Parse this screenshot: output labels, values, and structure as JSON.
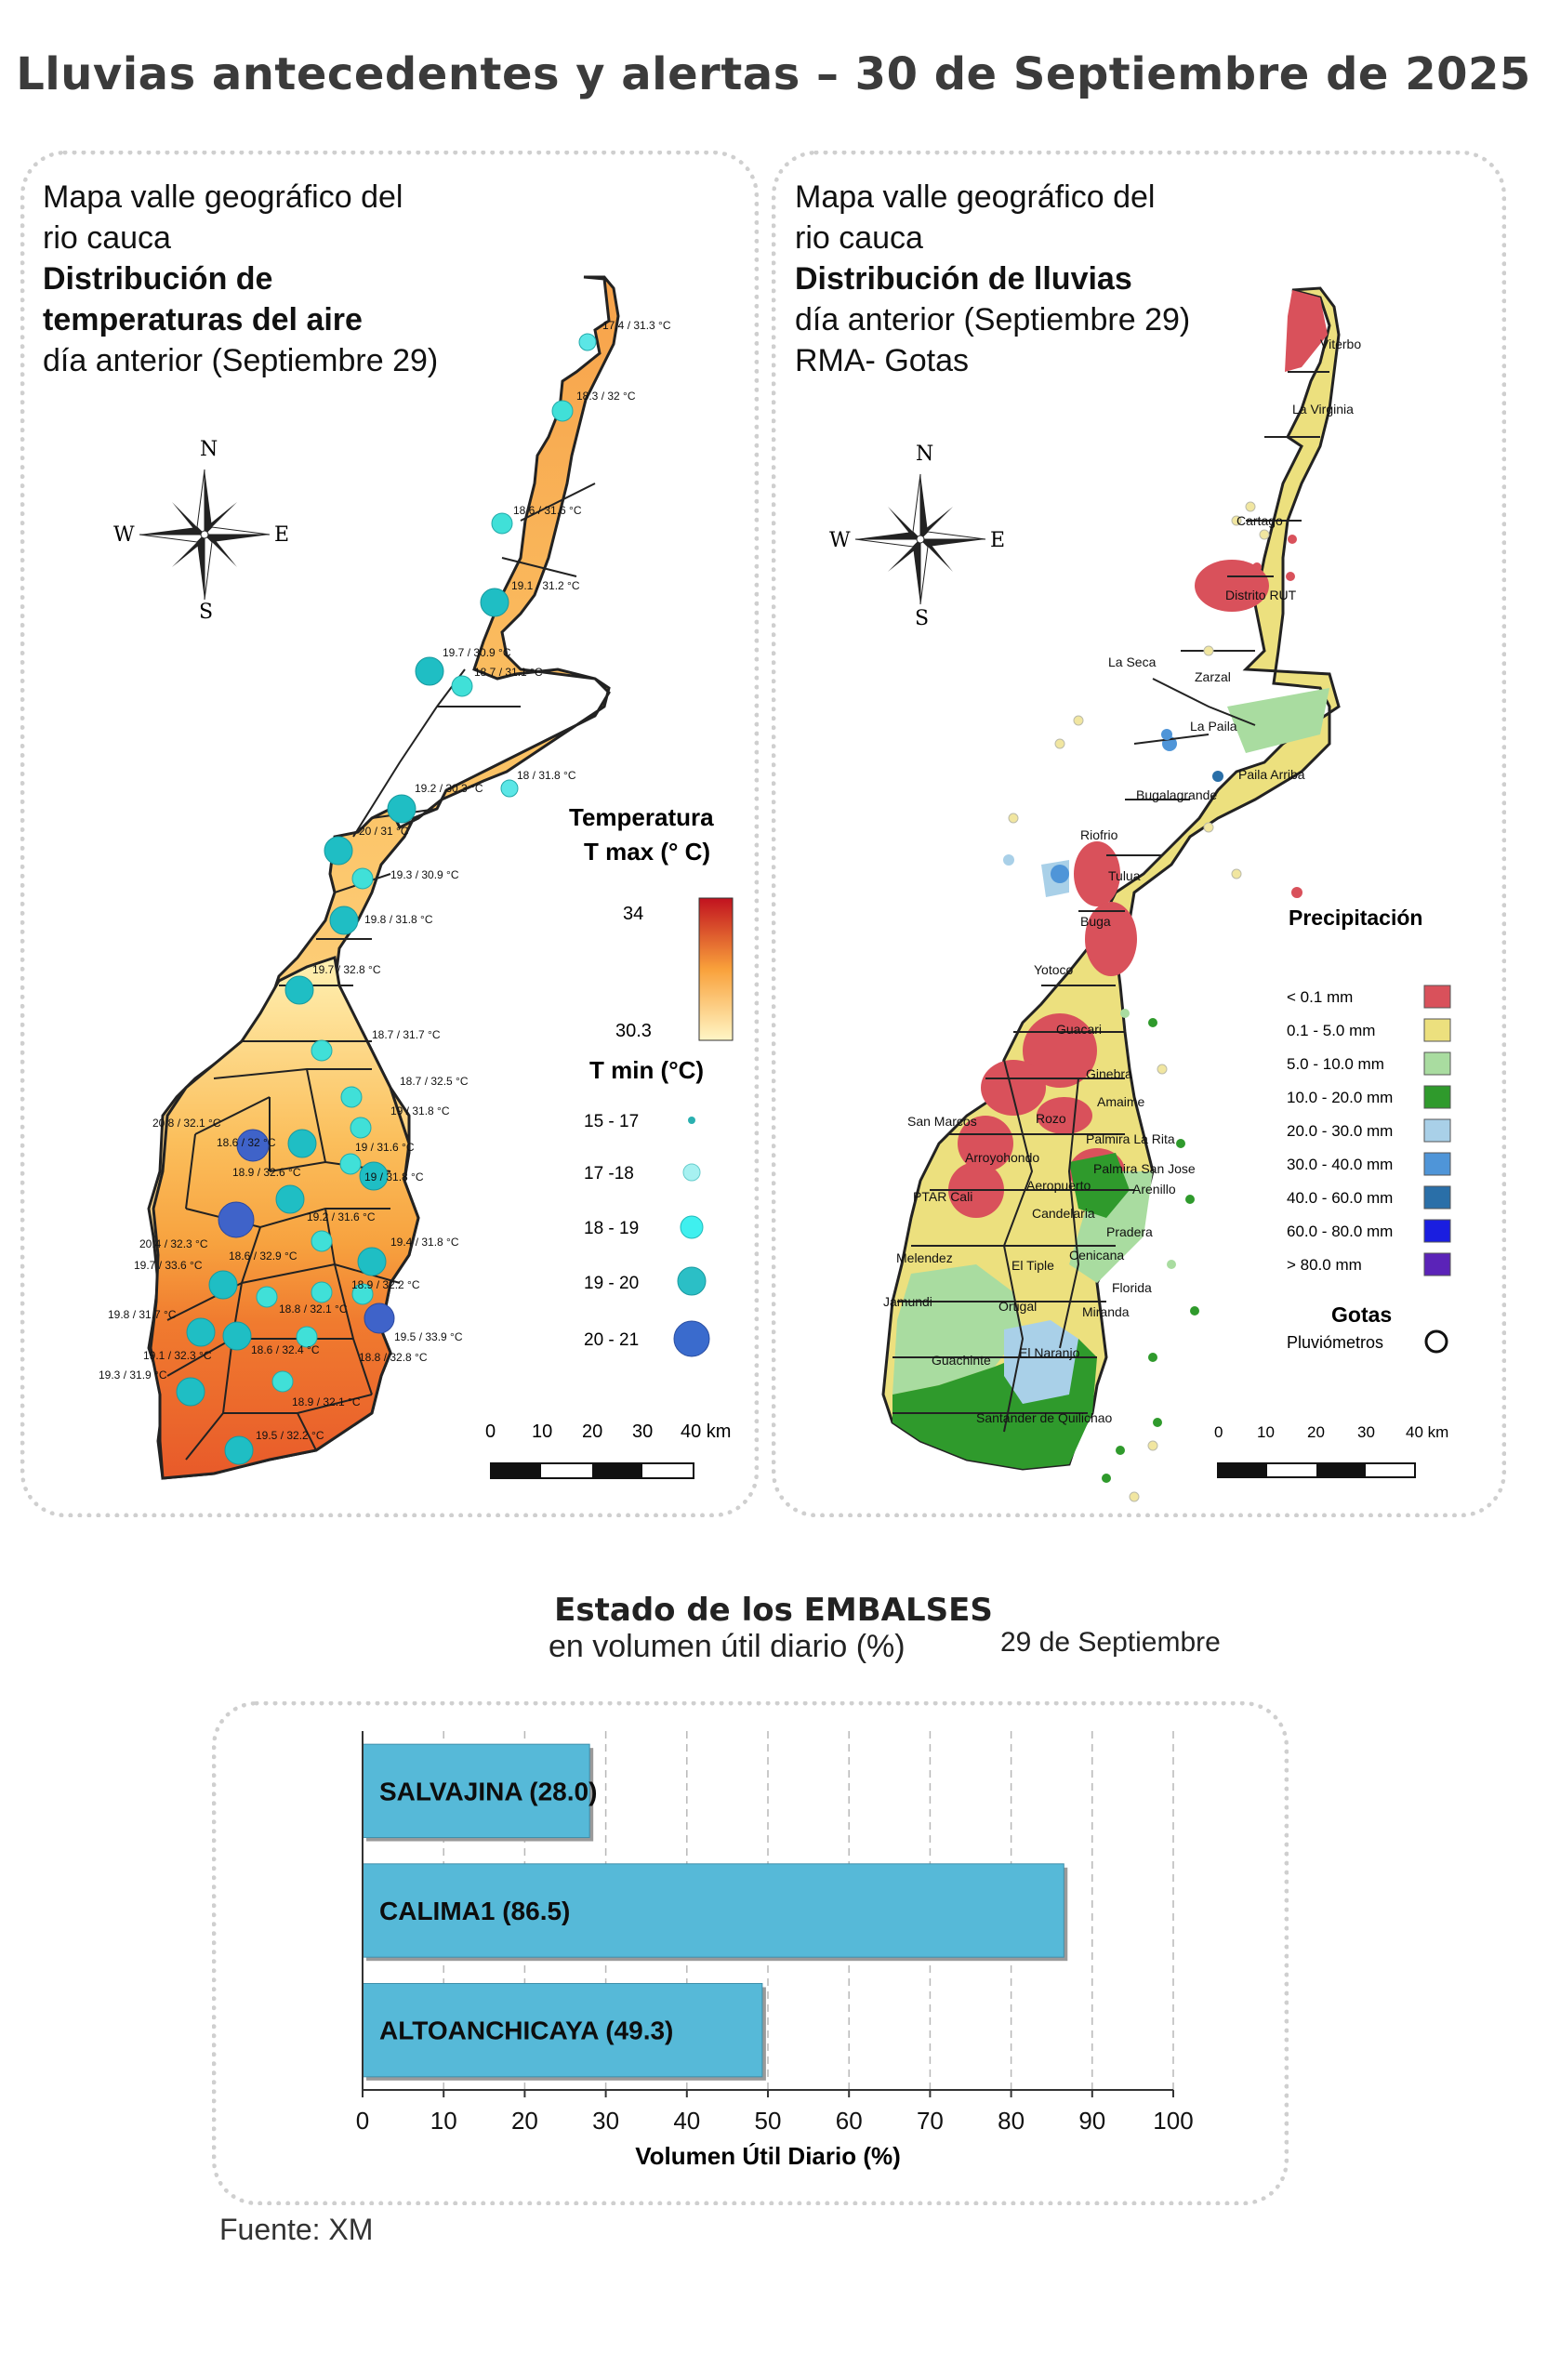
{
  "page_title": "Lluvias antecedentes y alertas – 30 de Septiembre de 2025",
  "temp_panel": {
    "title_lines": [
      "Mapa valle geográfico del",
      "rio cauca",
      "Distribución de",
      "temperaturas del aire"
    ],
    "subtitle": "día anterior (Septiembre 29)",
    "legend_tmax_title_1": "Temperatura",
    "legend_tmax_title_2": "T max (° C)",
    "tmax_high": "34",
    "tmax_low": "30.3",
    "legend_tmin_title": "T min (°C)",
    "tmin_classes": [
      "15 - 17",
      "17 -18",
      "18 - 19",
      "19 - 20",
      "20 - 21"
    ],
    "scale_labels": [
      "0",
      "10",
      "20",
      "30",
      "40 km"
    ],
    "compass": {
      "n": "N",
      "s": "S",
      "e": "E",
      "w": "W"
    },
    "stations": [
      "17.4 / 31.3 °C",
      "18.3 / 32 °C",
      "18.6 / 31.6 °C",
      "19.1 / 31.2 °C",
      "19.7 / 30.9 °C",
      "18.7 / 31.1 °C",
      "18 / 31.8 °C",
      "19.2 / 30.3 °C",
      "20 / 31 °C",
      "19.3 / 30.9 °C",
      "19.8 / 31.8 °C",
      "19.7 / 32.8 °C",
      "18.7 / 31.7 °C",
      "18.7 / 32.5 °C",
      "19 / 31.8 °C",
      "20.8 / 32.1 °C",
      "18.6 / 32 °C",
      "19 / 31.6 °C",
      "18.9 / 32.6 °C",
      "19 / 31.8 °C",
      "19.2 / 31.6 °C",
      "20.4 / 32.3 °C",
      "19.7 / 33.6 °C",
      "18.6 / 32.9 °C",
      "19.4 / 31.8 °C",
      "18.8 / 32.1 °C",
      "18.9 / 32.2 °C",
      "19.8 / 31.7 °C",
      "18.6 / 32.4 °C",
      "19.5 / 33.9 °C",
      "18.8 / 32.8 °C",
      "19.1 / 32.3 °C",
      "19.3 / 31.9 °C",
      "18.9 / 32.1 °C",
      "19.5 / 32.2 °C"
    ]
  },
  "rain_panel": {
    "title_lines": [
      "Mapa valle geográfico del",
      "rio cauca"
    ],
    "title_bold": "Distribución de lluvias",
    "subtitle_1": "día anterior (Septiembre 29)",
    "subtitle_2": "RMA- Gotas",
    "legend_title": "Precipitación",
    "classes": [
      {
        "label": "< 0.1 mm",
        "color": "#d9515b"
      },
      {
        "label": "0.1 - 5.0 mm",
        "color": "#ece07e"
      },
      {
        "label": "5.0 - 10.0 mm",
        "color": "#a9dca0"
      },
      {
        "label": "10.0 - 20.0 mm",
        "color": "#2f9a2c"
      },
      {
        "label": "20.0 - 30.0 mm",
        "color": "#a9d0e8"
      },
      {
        "label": "30.0 - 40.0 mm",
        "color": "#4f95d8"
      },
      {
        "label": "40.0 - 60.0 mm",
        "color": "#2a6fa8"
      },
      {
        "label": "60.0 - 80.0 mm",
        "color": "#1a1ee0"
      },
      {
        "label": "> 80.0 mm",
        "color": "#5b23b8"
      }
    ],
    "gotas_title": "Gotas",
    "gotas_item": "Pluviómetros",
    "scale_labels": [
      "0",
      "10",
      "20",
      "30",
      "40 km"
    ],
    "compass": {
      "n": "N",
      "s": "S",
      "e": "E",
      "w": "W"
    },
    "places": [
      "Viterbo",
      "La Virginia",
      "Cartago",
      "Distrito RUT",
      "La Seca",
      "Zarzal",
      "La Paila",
      "Paila Arriba",
      "Bugalagrande",
      "Riofrio",
      "Tulua",
      "Buga",
      "Yotoco",
      "Guacari",
      "Ginebra",
      "San Marcos",
      "Amaime",
      "Rozo",
      "Palmira La Rita",
      "Arroyohondo",
      "Palmira San Jose",
      "Aeropuerto",
      "Arenillo",
      "PTAR Cali",
      "Candelaria",
      "Pradera",
      "Melendez",
      "El Tiple",
      "Cenicana",
      "Florida",
      "Jamundi",
      "Ortigal",
      "Miranda",
      "El Naranjo",
      "Guachinte",
      "Santander de Quilichao"
    ]
  },
  "reservoirs": {
    "title": "Estado de los EMBALSES",
    "subtitle": "en volumen útil diario (%)",
    "date": "29 de Septiembre",
    "xlabel": "Volumen Útil Diario (%)",
    "source": "Fuente: XM"
  },
  "chart_data": {
    "type": "bar",
    "orientation": "horizontal",
    "categories": [
      "SALVAJINA (28.0)",
      "CALIMA1 (86.5)",
      "ALTOANCHICAYA (49.3)"
    ],
    "values": [
      28.0,
      86.5,
      49.3
    ],
    "title": "Estado de los EMBALSES",
    "xlabel": "Volumen Útil Diario (%)",
    "xlim": [
      0,
      100
    ],
    "xticks": [
      0,
      10,
      20,
      30,
      40,
      50,
      60,
      70,
      80,
      90,
      100
    ],
    "bar_color": "#56b9d8",
    "grid": "vertical dashed"
  }
}
